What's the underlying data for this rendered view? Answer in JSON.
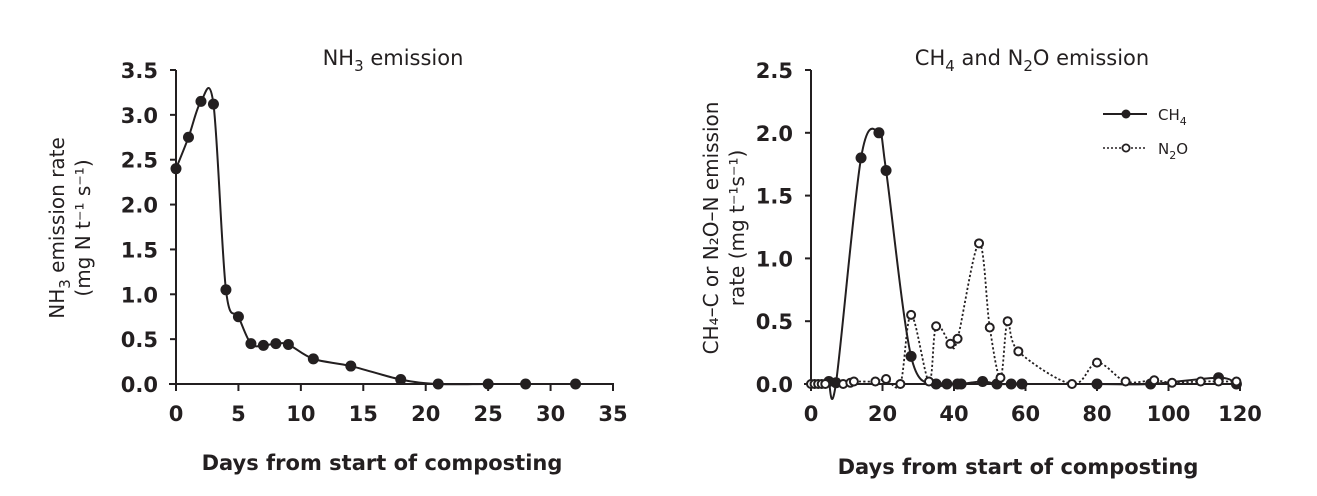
{
  "chart_data": [
    {
      "type": "line",
      "title": "NH3 emission",
      "xlabel": "Days from start of composting",
      "ylabel": "NH3 emission rate (mg N t-1 s-1)",
      "xlim": [
        0,
        35
      ],
      "ylim": [
        0,
        3.5
      ],
      "xticks": [
        "0",
        "5",
        "10",
        "15",
        "20",
        "25",
        "30",
        "35"
      ],
      "yticks": [
        "0.0",
        "0.5",
        "1.0",
        "1.5",
        "2.0",
        "2.5",
        "3.0",
        "3.5"
      ],
      "grid": false,
      "series": [
        {
          "name": "NH3",
          "marker": "filled-circle",
          "line": "solid",
          "x": [
            0,
            1,
            2,
            3,
            4,
            5,
            6,
            7,
            8,
            9,
            11,
            14,
            18,
            21,
            25,
            28,
            32
          ],
          "values": [
            2.4,
            2.75,
            3.15,
            3.12,
            1.05,
            0.75,
            0.45,
            0.43,
            0.45,
            0.44,
            0.28,
            0.2,
            0.05,
            0.0,
            0.0,
            0.0,
            0.0
          ]
        }
      ]
    },
    {
      "type": "line",
      "title": "CH4 and N2O emission",
      "xlabel": "Days from start of composting",
      "ylabel": "CH4-C or N2O-N emission rate (mg t-1 s-1)",
      "xlim": [
        0,
        120
      ],
      "ylim": [
        0,
        2.5
      ],
      "xticks": [
        "0",
        "20",
        "40",
        "60",
        "80",
        "100",
        "120"
      ],
      "yticks": [
        "0.0",
        "0.5",
        "1.0",
        "1.5",
        "2.0",
        "2.5"
      ],
      "grid": false,
      "legend_position": "upper right",
      "series": [
        {
          "name": "CH4",
          "marker": "filled-circle",
          "line": "solid",
          "x": [
            5,
            7,
            14,
            19,
            21,
            28,
            35,
            38,
            41,
            42,
            48,
            52,
            56,
            59,
            80,
            95,
            114,
            119
          ],
          "values": [
            0.02,
            0.01,
            1.8,
            2.0,
            1.7,
            0.22,
            0.0,
            0.0,
            0.0,
            0.0,
            0.02,
            0.0,
            0.0,
            0.0,
            0.0,
            0.0,
            0.05,
            0.0
          ]
        },
        {
          "name": "N2O",
          "marker": "open-circle",
          "line": "dotted",
          "x": [
            0,
            1,
            2,
            3,
            4,
            9,
            11,
            12,
            18,
            21,
            25,
            28,
            33,
            35,
            39,
            41,
            47,
            50,
            53,
            55,
            58,
            73,
            80,
            88,
            96,
            101,
            109,
            114,
            119
          ],
          "values": [
            0.0,
            0.0,
            0.0,
            0.0,
            0.0,
            0.0,
            0.01,
            0.02,
            0.02,
            0.04,
            0.0,
            0.55,
            0.02,
            0.46,
            0.32,
            0.36,
            1.12,
            0.45,
            0.05,
            0.5,
            0.26,
            0.0,
            0.17,
            0.02,
            0.03,
            0.01,
            0.02,
            0.02,
            0.02
          ]
        }
      ]
    }
  ],
  "left": {
    "title_main": "NH",
    "title_sub": "3",
    "title_rest": " emission",
    "ylabel_line1_a": "NH",
    "ylabel_line1_sub": "3",
    "ylabel_line1_b": " emission rate",
    "ylabel_line2": "(mg N t⁻¹ s⁻¹)",
    "xlabel": "Days from start of composting"
  },
  "right": {
    "title_a": "CH",
    "title_sub1": "4",
    "title_b": " and N",
    "title_sub2": "2",
    "title_c": "O emission",
    "ylabel_line1": "CH₄–C or N₂O–N emission",
    "ylabel_line2": "rate (mg t⁻¹s⁻¹)",
    "xlabel": "Days from start of composting",
    "legend": [
      {
        "label_main": "CH",
        "label_sub": "4",
        "label_tail": ""
      },
      {
        "label_main": "N",
        "label_sub": "2",
        "label_tail": "O"
      }
    ]
  },
  "colors": {
    "ink": "#231f20",
    "background": "#ffffff"
  }
}
